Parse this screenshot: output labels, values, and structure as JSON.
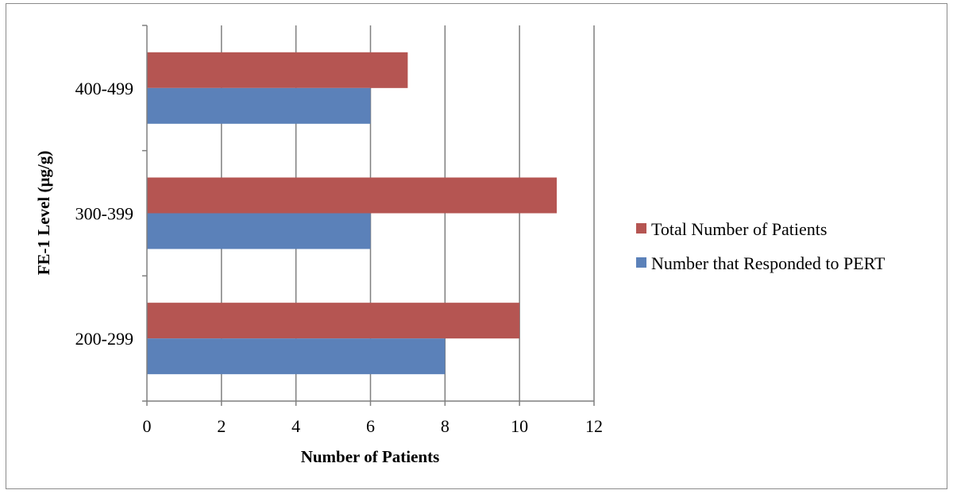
{
  "chart_data": {
    "type": "bar",
    "orientation": "horizontal",
    "categories": [
      "200-299",
      "300-399",
      "400-499"
    ],
    "series": [
      {
        "name": "Total Number of Patients",
        "values": [
          10,
          11,
          7
        ],
        "color": "#b55552"
      },
      {
        "name": "Number that Responded to PERT",
        "values": [
          8,
          6,
          6
        ],
        "color": "#5b81b9"
      }
    ],
    "xlabel": "Number of Patients",
    "ylabel": "FE-1 Level (µg/g)",
    "xlim": [
      0,
      12
    ],
    "xticks": [
      "0",
      "2",
      "4",
      "6",
      "8",
      "10",
      "12"
    ],
    "grid": "vertical",
    "legend_position": "right"
  }
}
